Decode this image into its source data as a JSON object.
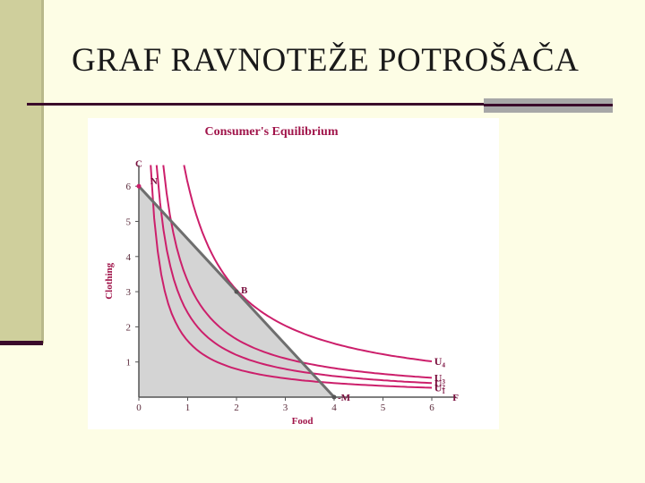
{
  "slide": {
    "title": "GRAF RAVNOTEŽE POTROŠAČA"
  },
  "chart_data": {
    "type": "line",
    "title": "Consumer's Equilibrium",
    "xlabel": "Food",
    "ylabel": "Clothing",
    "xlim": [
      0,
      6.5
    ],
    "ylim": [
      0,
      6.5
    ],
    "x_ticks": [
      0,
      1,
      2,
      3,
      4,
      5,
      6
    ],
    "y_ticks": [
      1,
      2,
      3,
      4,
      5,
      6
    ],
    "budget_line": {
      "x": [
        0,
        4
      ],
      "y": [
        6,
        0
      ]
    },
    "feasible_region": "shaded",
    "indifference_curves": [
      {
        "name": "U₁",
        "k": 1.6
      },
      {
        "name": "U₂",
        "k": 2.4
      },
      {
        "name": "U₃",
        "k": 3.3
      },
      {
        "name": "U₄",
        "k": 6.1
      }
    ],
    "points": [
      {
        "label": "C",
        "x": 0,
        "y": 6.5
      },
      {
        "label": "N",
        "x": 0.2,
        "y": 6
      },
      {
        "label": "B",
        "x": 2,
        "y": 3
      },
      {
        "label": "M",
        "x": 4,
        "y": 0
      },
      {
        "label": "F",
        "x": 6.5,
        "y": 0
      }
    ],
    "colors": {
      "budget_line": "#6e6e6e",
      "curves": "#cc1f6b",
      "shade": "#d4d4d4",
      "title": "#a0144a",
      "axis": "#555555",
      "labels": "#7a0f3e"
    }
  }
}
